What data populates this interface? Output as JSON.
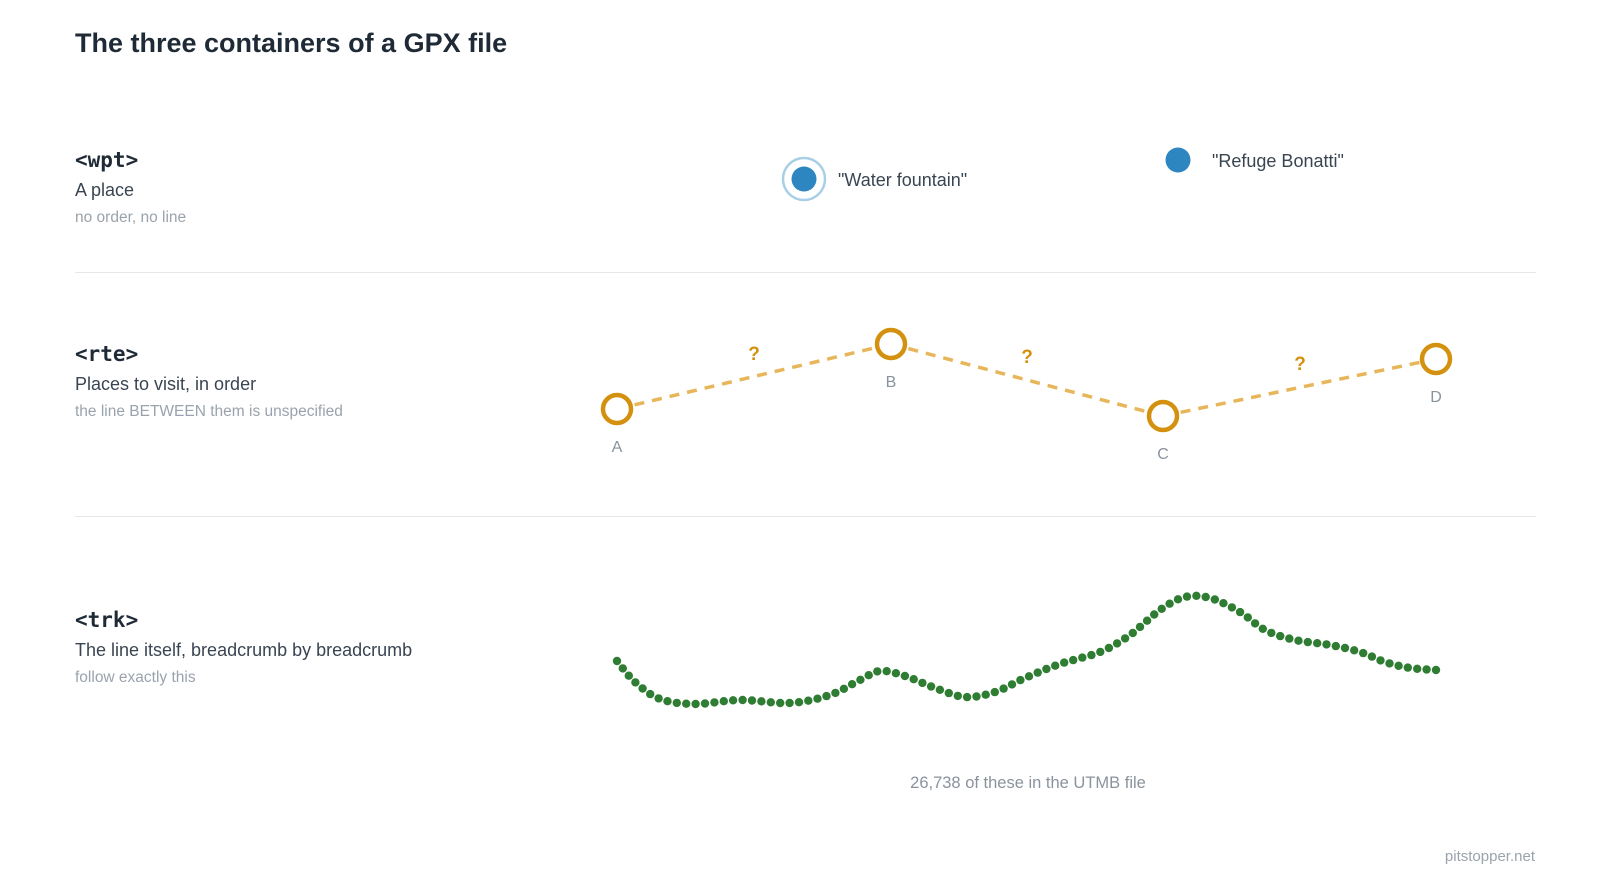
{
  "title": "The three containers of a GPX file",
  "sections": {
    "wpt": {
      "tag": "<wpt>",
      "desc": "A place",
      "note": "no order, no line",
      "points": [
        {
          "label": "\"Water fountain\"",
          "highlighted": true
        },
        {
          "label": "\"Refuge Bonatti\"",
          "highlighted": false
        }
      ]
    },
    "rte": {
      "tag": "<rte>",
      "desc": "Places to visit, in order",
      "note": "the line BETWEEN them is unspecified",
      "points": [
        "A",
        "B",
        "C",
        "D"
      ],
      "segment_label": "?"
    },
    "trk": {
      "tag": "<trk>",
      "desc": "The line itself, breadcrumb by breadcrumb",
      "note": "follow exactly this",
      "caption": "26,738 of these in the UTMB file"
    }
  },
  "footer": "pitstopper.net",
  "colors": {
    "waypoint": "#2e86c1",
    "waypoint_halo": "#a9cfe6",
    "route": "#d4900f",
    "route_line": "#e8b65a",
    "track": "#2e7d32"
  }
}
